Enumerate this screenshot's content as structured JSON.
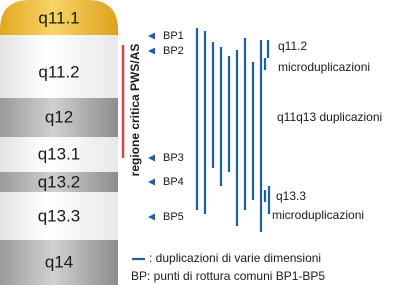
{
  "bands": [
    "q11.1",
    "q11.2",
    "q12",
    "q13.1",
    "q13.2",
    "q13.3",
    "q14"
  ],
  "critical_region": "regione critica PWS/AS",
  "breakpoints": [
    "BP1",
    "BP2",
    "BP3",
    "BP4",
    "BP5"
  ],
  "annotations": [
    "q11.2",
    "microduplicazioni",
    "q11q13 duplicazioni",
    "q13.3",
    "microduplicazioni"
  ],
  "legend": [
    ": duplicazioni di varie dimensioni",
    "BP: punti di rottura comuni BP1-BP5"
  ]
}
